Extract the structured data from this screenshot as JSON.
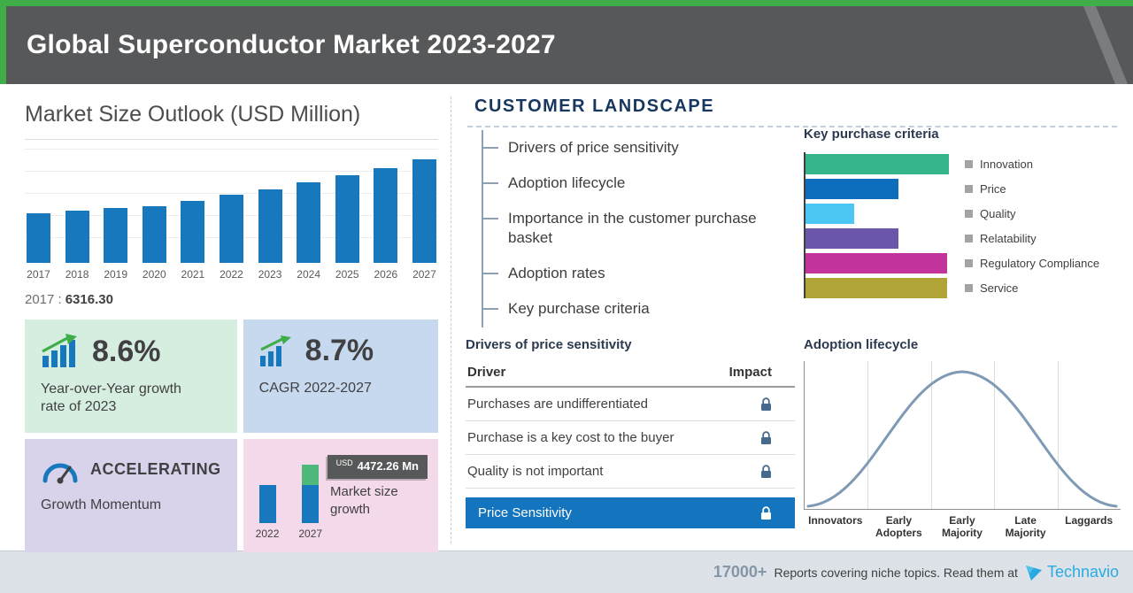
{
  "header": {
    "title": "Global Superconductor Market 2023-2027"
  },
  "market": {
    "base_year_label": "2017 :",
    "base_year_value": "6316.30"
  },
  "cards": {
    "yoy": {
      "value": "8.6%",
      "label": "Year-over-Year growth rate of 2023"
    },
    "cagr": {
      "value": "8.7%",
      "label": "CAGR 2022-2027"
    },
    "momentum": {
      "value": "ACCELERATING",
      "label": "Growth Momentum"
    },
    "growth": {
      "badge_currency": "USD",
      "badge_value": "4472.26 Mn",
      "label": "Market size growth"
    }
  },
  "customer": {
    "section_title": "CUSTOMER LANDSCAPE",
    "list_items": [
      "Drivers of price sensitivity",
      "Adoption lifecycle",
      "Importance in the customer purchase basket",
      "Adoption rates",
      "Key purchase criteria"
    ],
    "price_table": {
      "title": "Drivers of price sensitivity",
      "columns": [
        "Driver",
        "Impact"
      ],
      "rows": [
        "Purchases are undifferentiated",
        "Purchase is a key cost to the buyer",
        "Quality is not important"
      ],
      "highlight": "Price Sensitivity"
    }
  },
  "footer": {
    "count": "17000+",
    "text": "Reports covering niche topics. Read them at",
    "brand": "Technavio"
  },
  "chart_data": [
    {
      "type": "bar",
      "title": "Market Size Outlook (USD Million)",
      "categories": [
        "2017",
        "2018",
        "2019",
        "2020",
        "2021",
        "2022",
        "2023",
        "2024",
        "2025",
        "2026",
        "2027"
      ],
      "values": [
        6316.3,
        6650,
        7000,
        7200,
        7850,
        8641.9,
        9385,
        10200,
        11090,
        12050,
        13114
      ],
      "ylabel": "USD Million",
      "ylim": [
        0,
        13500
      ],
      "bar_color": "#1878be",
      "grid": true,
      "annotation": "2017 : 6316.30"
    },
    {
      "type": "bar",
      "orientation": "horizontal",
      "title": "Key purchase criteria",
      "categories": [
        "Innovation",
        "Price",
        "Quality",
        "Relatability",
        "Regulatory Compliance",
        "Service"
      ],
      "values": [
        100,
        65,
        34,
        65,
        99,
        99
      ],
      "colors": [
        "#35b48b",
        "#0d6ebd",
        "#4cc6f2",
        "#6a57a9",
        "#c2349b",
        "#b1a437"
      ],
      "xlim": [
        0,
        100
      ],
      "legend_position": "right"
    },
    {
      "type": "area",
      "title": "Adoption lifecycle",
      "curve": "bell",
      "categories": [
        "Innovators",
        "Early Adopters",
        "Early Majority",
        "Late Majority",
        "Laggards"
      ]
    },
    {
      "type": "bar",
      "title": "Market size growth",
      "categories": [
        "2022",
        "2027"
      ],
      "values": [
        8641.9,
        13114.2
      ],
      "annotation": "USD 4472.26 Mn",
      "bar_color": "#1878be",
      "growth_color": "#4db87a"
    }
  ]
}
